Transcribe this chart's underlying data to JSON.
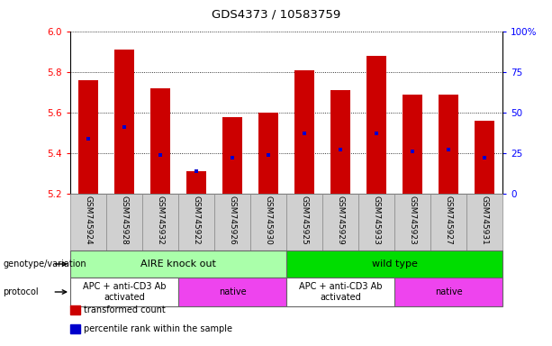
{
  "title": "GDS4373 / 10583759",
  "samples": [
    "GSM745924",
    "GSM745928",
    "GSM745932",
    "GSM745922",
    "GSM745926",
    "GSM745930",
    "GSM745925",
    "GSM745929",
    "GSM745933",
    "GSM745923",
    "GSM745927",
    "GSM745931"
  ],
  "bar_values": [
    5.76,
    5.91,
    5.72,
    5.31,
    5.58,
    5.6,
    5.81,
    5.71,
    5.88,
    5.69,
    5.69,
    5.56
  ],
  "bar_bottom": 5.2,
  "percentile_values": [
    5.47,
    5.53,
    5.39,
    5.31,
    5.38,
    5.39,
    5.5,
    5.42,
    5.5,
    5.41,
    5.42,
    5.38
  ],
  "ylim": [
    5.2,
    6.0
  ],
  "yticks": [
    5.2,
    5.4,
    5.6,
    5.8,
    6.0
  ],
  "right_yticks_vals": [
    0,
    25,
    50,
    75,
    100
  ],
  "right_yticks_labels": [
    "0",
    "25",
    "50",
    "75",
    "100%"
  ],
  "bar_color": "#cc0000",
  "percentile_color": "#0000cc",
  "genotype_groups": [
    {
      "label": "AIRE knock out",
      "start": 0,
      "end": 6,
      "color": "#aaffaa"
    },
    {
      "label": "wild type",
      "start": 6,
      "end": 12,
      "color": "#00dd00"
    }
  ],
  "protocol_groups": [
    {
      "label": "APC + anti-CD3 Ab\nactivated",
      "start": 0,
      "end": 3,
      "color": "#ffffff"
    },
    {
      "label": "native",
      "start": 3,
      "end": 6,
      "color": "#ee44ee"
    },
    {
      "label": "APC + anti-CD3 Ab\nactivated",
      "start": 6,
      "end": 9,
      "color": "#ffffff"
    },
    {
      "label": "native",
      "start": 9,
      "end": 12,
      "color": "#ee44ee"
    }
  ],
  "legend_items": [
    {
      "label": "transformed count",
      "color": "#cc0000"
    },
    {
      "label": "percentile rank within the sample",
      "color": "#0000cc"
    }
  ],
  "left_label_genotype": "genotype/variation",
  "left_label_protocol": "protocol"
}
